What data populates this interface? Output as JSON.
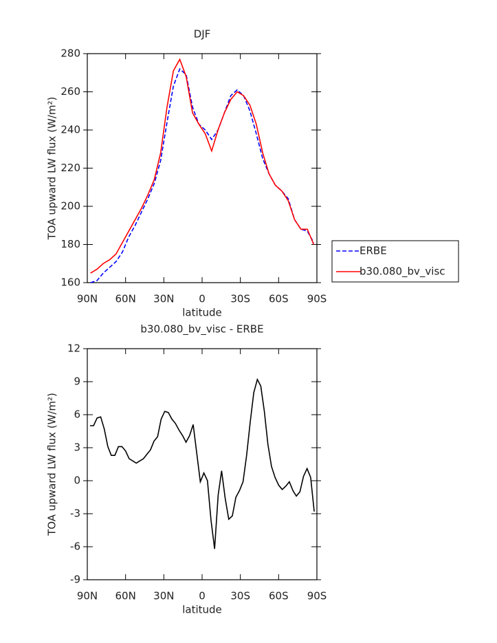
{
  "chart_data": [
    {
      "type": "line",
      "title": "DJF",
      "x_label": "latitude",
      "y_label": "TOA upward LW flux (W/m²)",
      "x": [
        87.5,
        82.5,
        77.5,
        72.5,
        67.5,
        62.5,
        57.5,
        52.5,
        47.5,
        42.5,
        37.5,
        32.5,
        27.5,
        22.5,
        17.5,
        12.5,
        7.5,
        2.5,
        -2.5,
        -7.5,
        -12.5,
        -17.5,
        -22.5,
        -27.5,
        -32.5,
        -37.5,
        -42.5,
        -47.5,
        -52.5,
        -57.5,
        -62.5,
        -67.5,
        -72.5,
        -77.5,
        -82.5,
        -87.5
      ],
      "series": [
        {
          "name": "ERBE",
          "color": "#0000ff",
          "dashed": true,
          "values": [
            160,
            161,
            165,
            168,
            171,
            176,
            184,
            190,
            197,
            204,
            212,
            224,
            244,
            263,
            272,
            269,
            252,
            243,
            240,
            235,
            240,
            249,
            258,
            261,
            258,
            250,
            238,
            225,
            217,
            211,
            208,
            204,
            193,
            188,
            187,
            181
          ]
        },
        {
          "name": "b30.080_bv_visc",
          "color": "#ff0000",
          "dashed": false,
          "values": [
            165,
            167,
            170,
            172,
            175,
            181,
            187,
            193,
            199,
            206,
            214,
            228,
            252,
            271,
            277,
            268,
            249,
            243,
            238,
            229,
            240,
            249,
            256,
            260,
            258,
            253,
            243,
            228,
            217,
            211,
            208,
            203,
            193,
            188,
            188,
            180
          ]
        }
      ],
      "xlim": [
        90,
        -90
      ],
      "xticks": [
        {
          "value": 90,
          "label": "90N"
        },
        {
          "value": 60,
          "label": "60N"
        },
        {
          "value": 30,
          "label": "30N"
        },
        0,
        {
          "value": -30,
          "label": "30S"
        },
        {
          "value": -60,
          "label": "60S"
        },
        {
          "value": -90,
          "label": "90S"
        }
      ],
      "ylim": [
        160,
        280
      ],
      "yticks": [
        160,
        180,
        200,
        220,
        240,
        260,
        280
      ],
      "legend": "outside-right"
    },
    {
      "type": "line",
      "title": "b30.080_bv_visc - ERBE",
      "x_label": "latitude",
      "y_label": "TOA upward LW flux (W/m²)",
      "x": [
        87.9,
        85.1,
        82.3,
        79.5,
        76.7,
        73.9,
        71.2,
        68.4,
        65.6,
        62.8,
        60.0,
        57.2,
        54.4,
        51.6,
        48.8,
        46.0,
        43.3,
        40.5,
        37.7,
        34.9,
        32.1,
        29.3,
        26.5,
        23.7,
        20.9,
        18.1,
        15.3,
        12.6,
        9.8,
        7.0,
        4.2,
        1.4,
        -1.4,
        -4.2,
        -7.0,
        -9.8,
        -12.6,
        -15.3,
        -18.1,
        -20.9,
        -23.7,
        -26.5,
        -29.3,
        -32.1,
        -34.9,
        -37.7,
        -40.5,
        -43.3,
        -46.0,
        -48.8,
        -51.6,
        -54.4,
        -57.2,
        -60.0,
        -62.8,
        -65.6,
        -68.4,
        -71.2,
        -73.9,
        -76.7,
        -79.5,
        -82.3,
        -85.1,
        -87.9
      ],
      "values": [
        5.0,
        5.0,
        5.7,
        5.8,
        4.7,
        3.1,
        2.3,
        2.3,
        3.1,
        3.1,
        2.7,
        2.0,
        1.8,
        1.6,
        1.8,
        2.0,
        2.4,
        2.8,
        3.6,
        4.0,
        5.6,
        6.3,
        6.2,
        5.6,
        5.2,
        4.6,
        4.1,
        3.5,
        4.1,
        5.1,
        2.5,
        -0.1,
        0.7,
        0.0,
        -3.6,
        -6.2,
        -1.3,
        0.9,
        -1.6,
        -3.5,
        -3.2,
        -1.5,
        -0.9,
        -0.1,
        2.3,
        5.3,
        8.0,
        9.2,
        8.6,
        6.3,
        3.3,
        1.3,
        0.3,
        -0.4,
        -0.8,
        -0.5,
        -0.1,
        -0.9,
        -1.4,
        -1.0,
        0.4,
        1.1,
        0.3,
        -2.8
      ],
      "color": "#000000",
      "xlim": [
        90,
        -90
      ],
      "xticks": [
        {
          "value": 90,
          "label": "90N"
        },
        {
          "value": 60,
          "label": "60N"
        },
        {
          "value": 30,
          "label": "30N"
        },
        0,
        {
          "value": -30,
          "label": "30S"
        },
        {
          "value": -60,
          "label": "60S"
        },
        {
          "value": -90,
          "label": "90S"
        }
      ],
      "ylim": [
        -9,
        12
      ],
      "yticks": [
        -9,
        -6,
        -3,
        0,
        3,
        6,
        9,
        12
      ]
    }
  ]
}
